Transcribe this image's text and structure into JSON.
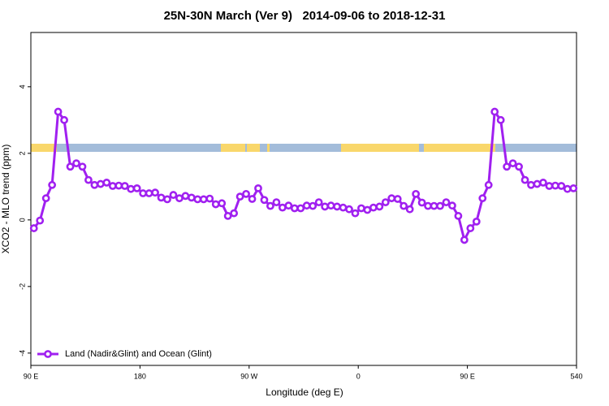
{
  "chart_data": {
    "type": "line",
    "title": "25N-30N March (Ver 9)   2014-09-06 to 2018-12-31",
    "xlabel": "Longitude (deg E)",
    "ylabel": "XCO2 - MLO trend (ppm)",
    "xlim": [
      90,
      540
    ],
    "ylim": [
      -4.37,
      5.63
    ],
    "xticks": [
      {
        "value": 90,
        "label": "90 E"
      },
      180,
      {
        "value": 270,
        "label": "90 W"
      },
      {
        "value": 360,
        "label": "0"
      },
      {
        "value": 450,
        "label": "90 E"
      },
      540
    ],
    "yticks": [
      -4,
      -2,
      0,
      2,
      4
    ],
    "legend_position": "bottomleft",
    "x": [
      92.5,
      97.5,
      102.5,
      107.5,
      112.5,
      117.5,
      122.5,
      127.5,
      132.5,
      137.5,
      142.5,
      147.5,
      152.5,
      157.5,
      162.5,
      167.5,
      172.5,
      177.5,
      182.5,
      187.5,
      192.5,
      197.5,
      202.5,
      207.5,
      212.5,
      217.5,
      222.5,
      227.5,
      232.5,
      237.5,
      242.5,
      247.5,
      252.5,
      257.5,
      262.5,
      267.5,
      272.5,
      277.5,
      282.5,
      287.5,
      292.5,
      297.5,
      302.5,
      307.5,
      312.5,
      317.5,
      322.5,
      327.5,
      332.5,
      337.5,
      342.5,
      347.5,
      352.5,
      357.5,
      362.5,
      367.5,
      372.5,
      377.5,
      382.5,
      387.5,
      392.5,
      397.5,
      402.5,
      407.5,
      412.5,
      417.5,
      422.5,
      427.5,
      432.5,
      437.5,
      442.5,
      447.5,
      452.5,
      457.5,
      462.5,
      467.5,
      472.5,
      477.5,
      482.5,
      487.5,
      492.5,
      497.5,
      502.5,
      507.5,
      512.5,
      517.5,
      522.5,
      527.5,
      532.5,
      537.5
    ],
    "series": [
      {
        "name": "Land (Nadir&Glint) and Ocean (Glint)",
        "color": "#a020f0",
        "values": [
          -0.25,
          -0.02,
          0.65,
          1.05,
          3.25,
          3.0,
          1.6,
          1.7,
          1.6,
          1.2,
          1.05,
          1.08,
          1.12,
          1.02,
          1.03,
          1.02,
          0.93,
          0.95,
          0.8,
          0.8,
          0.82,
          0.67,
          0.62,
          0.75,
          0.65,
          0.72,
          0.67,
          0.62,
          0.62,
          0.64,
          0.47,
          0.5,
          0.12,
          0.2,
          0.7,
          0.78,
          0.63,
          0.95,
          0.6,
          0.42,
          0.53,
          0.37,
          0.43,
          0.35,
          0.35,
          0.43,
          0.42,
          0.53,
          0.4,
          0.43,
          0.4,
          0.37,
          0.32,
          0.2,
          0.35,
          0.3,
          0.37,
          0.4,
          0.53,
          0.65,
          0.63,
          0.42,
          0.32,
          0.78,
          0.52,
          0.42,
          0.42,
          0.42,
          0.53,
          0.43,
          0.12,
          -0.6,
          -0.25,
          -0.05,
          0.65,
          1.05,
          3.25,
          3.0,
          1.6,
          1.7,
          1.6,
          1.2,
          1.05,
          1.08,
          1.12,
          1.02,
          1.03,
          1.02,
          0.93,
          0.95
        ]
      }
    ]
  }
}
